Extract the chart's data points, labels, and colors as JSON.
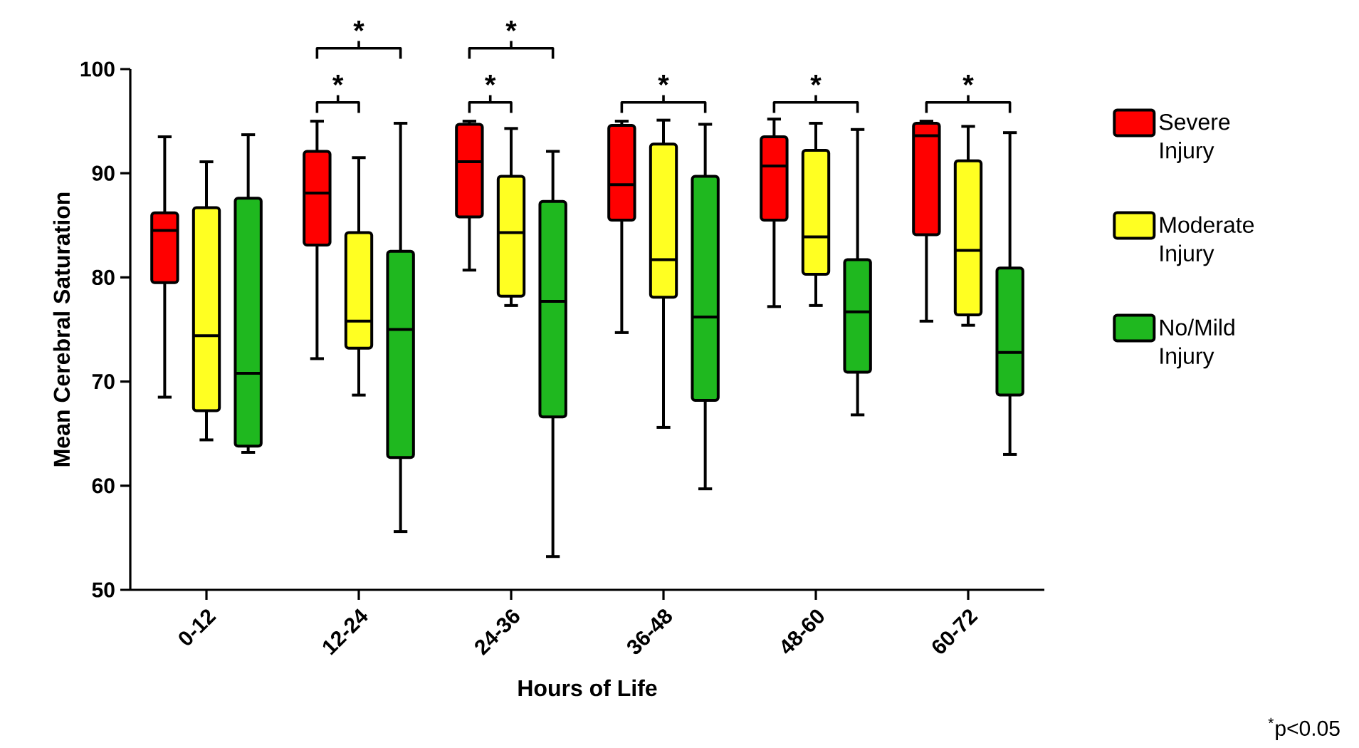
{
  "chart_data": {
    "type": "box",
    "xlabel": "Hours of Life",
    "ylabel": "Mean Cerebral Saturation",
    "categories": [
      "0-12",
      "12-24",
      "24-36",
      "36-48",
      "48-60",
      "60-72"
    ],
    "ylim": [
      50,
      100
    ],
    "yticks": [
      50,
      60,
      70,
      80,
      90,
      100
    ],
    "legend": "right",
    "series": [
      {
        "name": "Severe Injury",
        "color": "#ff0000",
        "boxes": [
          {
            "low": 68.5,
            "q1": 79.5,
            "median": 84.5,
            "q3": 86.2,
            "high": 93.5
          },
          {
            "low": 72.2,
            "q1": 83.1,
            "median": 88.1,
            "q3": 92.1,
            "high": 95
          },
          {
            "low": 80.7,
            "q1": 85.8,
            "median": 91.1,
            "q3": 94.7,
            "high": 95
          },
          {
            "low": 74.7,
            "q1": 85.5,
            "median": 88.9,
            "q3": 94.6,
            "high": 95
          },
          {
            "low": 77.2,
            "q1": 85.5,
            "median": 90.7,
            "q3": 93.5,
            "high": 95.2
          },
          {
            "low": 75.8,
            "q1": 84.1,
            "median": 93.6,
            "q3": 94.8,
            "high": 95
          }
        ]
      },
      {
        "name": "Moderate Injury",
        "color": "#ffff22",
        "boxes": [
          {
            "low": 64.4,
            "q1": 67.2,
            "median": 74.4,
            "q3": 86.7,
            "high": 91.1
          },
          {
            "low": 68.7,
            "q1": 73.2,
            "median": 75.8,
            "q3": 84.3,
            "high": 91.5
          },
          {
            "low": 77.3,
            "q1": 78.2,
            "median": 84.3,
            "q3": 89.7,
            "high": 94.3
          },
          {
            "low": 65.6,
            "q1": 78.1,
            "median": 81.7,
            "q3": 92.8,
            "high": 95.1
          },
          {
            "low": 77.3,
            "q1": 80.3,
            "median": 83.9,
            "q3": 92.2,
            "high": 94.8
          },
          {
            "low": 75.4,
            "q1": 76.4,
            "median": 82.6,
            "q3": 91.2,
            "high": 94.5
          }
        ]
      },
      {
        "name": "No/Mild Injury",
        "color": "#1fb81f",
        "boxes": [
          {
            "low": 63.2,
            "q1": 63.8,
            "median": 70.8,
            "q3": 87.6,
            "high": 93.7
          },
          {
            "low": 55.6,
            "q1": 62.7,
            "median": 75,
            "q3": 82.5,
            "high": 94.8
          },
          {
            "low": 53.2,
            "q1": 66.6,
            "median": 77.7,
            "q3": 87.3,
            "high": 92.1
          },
          {
            "low": 59.7,
            "q1": 68.2,
            "median": 76.2,
            "q3": 89.7,
            "high": 94.7
          },
          {
            "low": 66.8,
            "q1": 70.9,
            "median": 76.7,
            "q3": 81.7,
            "high": 94.2
          },
          {
            "low": 63,
            "q1": 68.7,
            "median": 72.8,
            "q3": 80.9,
            "high": 93.9
          }
        ]
      }
    ],
    "annotations": [
      "*",
      "*",
      "*",
      "*",
      "*",
      "*",
      "*",
      "$^{*}$p<0.05"
    ]
  }
}
